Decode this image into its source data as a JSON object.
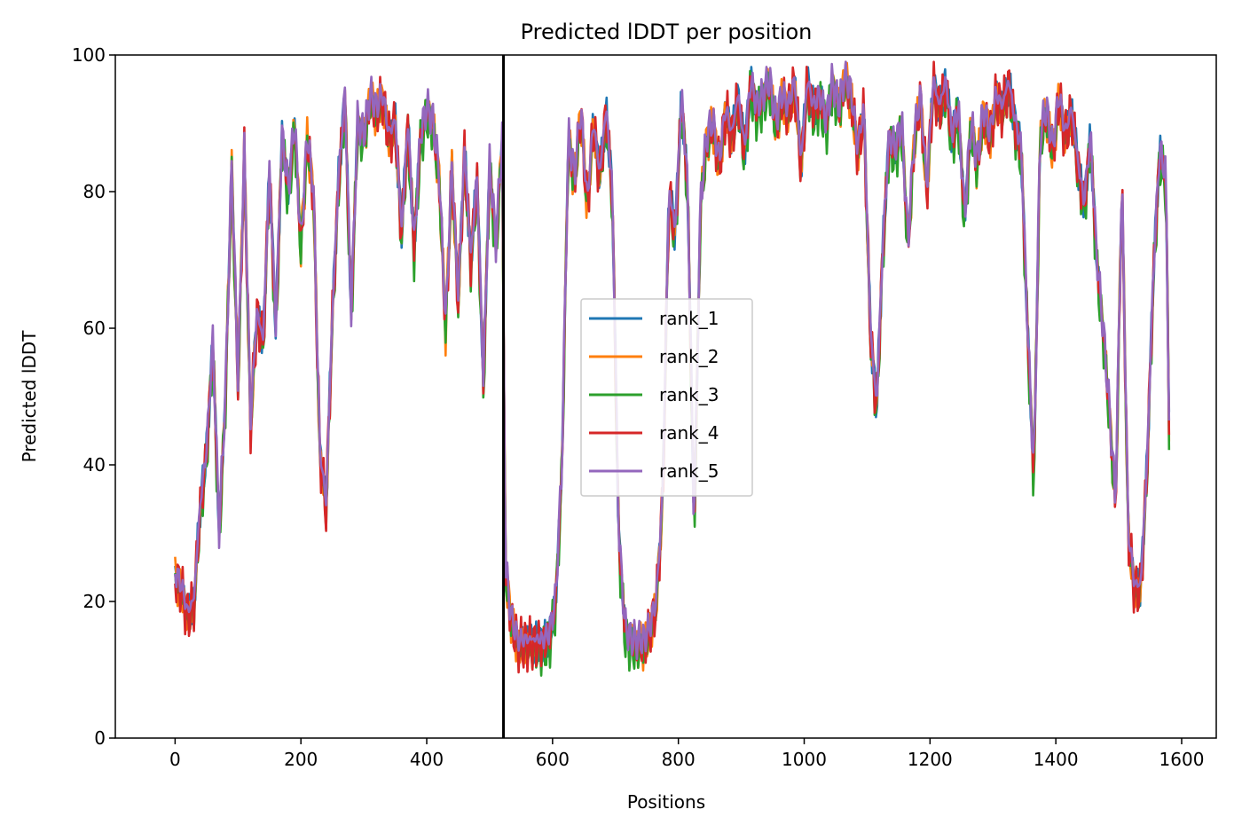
{
  "chart_data": {
    "type": "line",
    "title": "Predicted lDDT per position",
    "xlabel": "Positions",
    "ylabel": "Predicted lDDT",
    "xlim": [
      -95,
      1655
    ],
    "ylim": [
      0,
      100
    ],
    "xticks": [
      0,
      200,
      400,
      600,
      800,
      1000,
      1200,
      1400,
      1600
    ],
    "yticks": [
      0,
      20,
      40,
      60,
      80,
      100
    ],
    "grid": false,
    "legend_position": "center",
    "separator_x": 522,
    "base_x": [
      0,
      10,
      20,
      30,
      40,
      50,
      60,
      70,
      80,
      90,
      100,
      110,
      120,
      130,
      140,
      150,
      160,
      170,
      180,
      190,
      200,
      210,
      220,
      230,
      240,
      250,
      260,
      270,
      280,
      290,
      300,
      310,
      320,
      330,
      340,
      350,
      360,
      370,
      380,
      390,
      400,
      410,
      420,
      430,
      440,
      450,
      460,
      470,
      480,
      490,
      500,
      510,
      520,
      525,
      535,
      545,
      555,
      565,
      575,
      585,
      595,
      605,
      615,
      625,
      635,
      645,
      655,
      665,
      675,
      685,
      695,
      705,
      715,
      725,
      735,
      745,
      755,
      765,
      775,
      785,
      795,
      805,
      815,
      825,
      835,
      845,
      855,
      865,
      875,
      885,
      895,
      905,
      915,
      925,
      935,
      945,
      955,
      965,
      975,
      985,
      995,
      1005,
      1015,
      1025,
      1035,
      1045,
      1055,
      1065,
      1075,
      1085,
      1095,
      1105,
      1115,
      1125,
      1135,
      1145,
      1155,
      1165,
      1175,
      1185,
      1195,
      1205,
      1215,
      1225,
      1235,
      1245,
      1255,
      1265,
      1275,
      1285,
      1295,
      1305,
      1315,
      1325,
      1335,
      1345,
      1355,
      1365,
      1375,
      1385,
      1395,
      1405,
      1415,
      1425,
      1435,
      1445,
      1455,
      1465,
      1475,
      1485,
      1495,
      1505,
      1515,
      1525,
      1535,
      1545,
      1555,
      1565,
      1575,
      1580
    ],
    "base_y": [
      24,
      22,
      18,
      20,
      34,
      42,
      58,
      30,
      50,
      84,
      52,
      86,
      46,
      62,
      58,
      83,
      60,
      88,
      80,
      90,
      72,
      88,
      80,
      42,
      34,
      62,
      82,
      94,
      62,
      90,
      88,
      94,
      92,
      94,
      88,
      90,
      74,
      90,
      72,
      88,
      92,
      90,
      82,
      60,
      84,
      64,
      86,
      70,
      82,
      52,
      84,
      72,
      88,
      25,
      17,
      14,
      14,
      14,
      14,
      14,
      15,
      20,
      40,
      88,
      82,
      92,
      78,
      90,
      82,
      92,
      80,
      30,
      16,
      14,
      14,
      14,
      16,
      20,
      35,
      80,
      74,
      94,
      80,
      30,
      78,
      88,
      90,
      84,
      92,
      88,
      94,
      86,
      96,
      92,
      94,
      96,
      90,
      94,
      92,
      96,
      84,
      96,
      92,
      94,
      90,
      96,
      92,
      97,
      94,
      86,
      92,
      60,
      48,
      72,
      88,
      86,
      90,
      72,
      88,
      94,
      80,
      96,
      92,
      96,
      88,
      92,
      76,
      90,
      84,
      92,
      88,
      94,
      92,
      96,
      90,
      86,
      60,
      38,
      88,
      92,
      86,
      94,
      88,
      92,
      84,
      78,
      88,
      70,
      60,
      48,
      34,
      82,
      30,
      22,
      22,
      40,
      68,
      86,
      82,
      46
    ],
    "series": [
      {
        "name": "rank_1",
        "color": "#1f77b4",
        "offset": 0.0,
        "amp": 0.8,
        "phase": 0.3
      },
      {
        "name": "rank_2",
        "color": "#ff7f0e",
        "offset": -0.6,
        "amp": 1.0,
        "phase": 1.4
      },
      {
        "name": "rank_3",
        "color": "#2ca02c",
        "offset": -1.2,
        "amp": 1.2,
        "phase": 2.2
      },
      {
        "name": "rank_4",
        "color": "#d62728",
        "offset": -0.3,
        "amp": 1.3,
        "phase": 3.1
      },
      {
        "name": "rank_5",
        "color": "#9467bd",
        "offset": 0.5,
        "amp": 0.7,
        "phase": 4.0
      }
    ]
  }
}
